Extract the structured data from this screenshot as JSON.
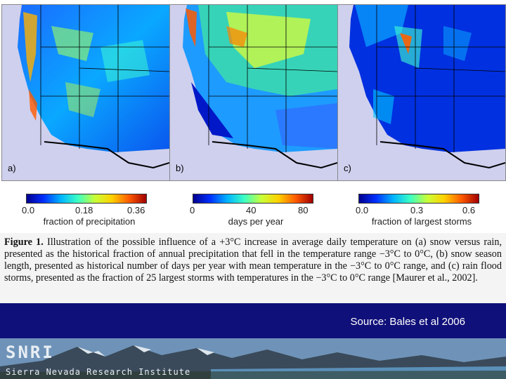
{
  "panels": [
    {
      "letter": "a)"
    },
    {
      "letter": "b)"
    },
    {
      "letter": "c)"
    }
  ],
  "scales": [
    {
      "ticks": [
        "0.0",
        "0.18",
        "0.36"
      ],
      "label": "fraction of precipitation"
    },
    {
      "ticks": [
        "0",
        "40",
        "80"
      ],
      "label": "days per year"
    },
    {
      "ticks": [
        "0.0",
        "0.3",
        "0.6"
      ],
      "label": "fraction of largest storms"
    }
  ],
  "caption": {
    "figure_label": "Figure 1.",
    "text": "Illustration of the possible influence of a +3°C increase in average daily temperature on (a) snow versus rain, presented as the historical fraction of annual precipitation that fell in the temperature range −3°C to 0°C, (b) snow season length, presented as historical number of days per year with mean temperature in the −3°C to 0°C range, and (c) rain flood storms, presented as the fraction of 25 largest storms with temperatures in the −3°C to 0°C range [Maurer et al., 2002]."
  },
  "source": "Source: Bales et al 2006",
  "footer": {
    "logo": "SNRI",
    "subtitle": "Sierra Nevada Research Institute"
  },
  "colors": {
    "band": "#10107a",
    "ocean": "#cfd0ee",
    "colormap": [
      "#00008f",
      "#0030ff",
      "#00b4ff",
      "#3cffc3",
      "#c8ff37",
      "#ffd000",
      "#ff5a00",
      "#a00000"
    ]
  }
}
